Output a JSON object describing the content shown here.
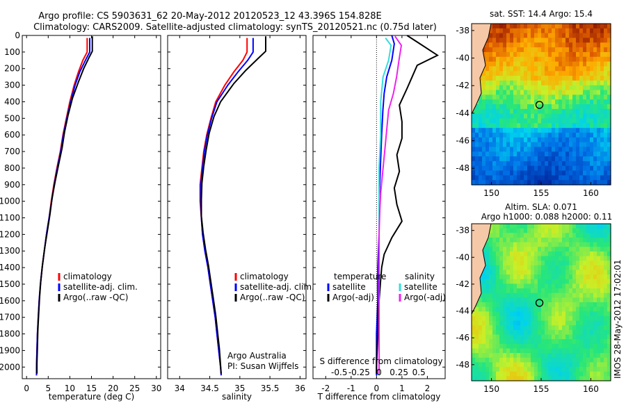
{
  "header": {
    "title_line1": "Argo profile: CS 5903631_62 20-May-2012 20120523_12 43.396S 154.828E",
    "title_line2": "Climatology: CARS2009. Satellite-adjusted climatology: synTS_20120521.nc (0.75d later)"
  },
  "colors": {
    "climatology": "#ff0000",
    "satellite": "#0000ff",
    "argo": "#000000",
    "salinity_satellite": "#33dddd",
    "salinity_argo": "#ee22ee"
  },
  "chart_data": [
    {
      "type": "line",
      "name": "temperature-profile",
      "xlabel": "temperature (deg C)",
      "xlim": [
        -1,
        31
      ],
      "ylim": [
        2070,
        0
      ],
      "xticks": [
        0,
        5,
        10,
        15,
        20,
        25,
        30
      ],
      "yticks": [
        0,
        100,
        200,
        300,
        400,
        500,
        600,
        700,
        800,
        900,
        1000,
        1100,
        1200,
        1300,
        1400,
        1500,
        1600,
        1700,
        1800,
        1900,
        2000
      ],
      "legend": {
        "position": "lower-center",
        "entries": [
          "climatology",
          "satellite-adj. clim.",
          "Argo(..raw -QC)"
        ]
      },
      "series": [
        {
          "name": "climatology",
          "points": [
            [
              14,
              15
            ],
            [
              14,
              100
            ],
            [
              13,
              150
            ],
            [
              12,
              220
            ],
            [
              11,
              300
            ],
            [
              10,
              400
            ],
            [
              9.2,
              500
            ],
            [
              8.4,
              600
            ],
            [
              7.8,
              700
            ],
            [
              7,
              800
            ],
            [
              6.3,
              900
            ],
            [
              5.7,
              1000
            ],
            [
              5.2,
              1100
            ],
            [
              4.6,
              1200
            ],
            [
              4.1,
              1300
            ],
            [
              3.6,
              1400
            ],
            [
              3.2,
              1500
            ],
            [
              2.9,
              1600
            ],
            [
              2.7,
              1700
            ],
            [
              2.5,
              1800
            ],
            [
              2.4,
              1900
            ],
            [
              2.3,
              2000
            ],
            [
              2.3,
              2050
            ]
          ]
        },
        {
          "name": "satellite-adj. clim.",
          "points": [
            [
              14.6,
              15
            ],
            [
              14.6,
              100
            ],
            [
              13.6,
              150
            ],
            [
              12.3,
              220
            ],
            [
              11.2,
              300
            ],
            [
              10.2,
              400
            ],
            [
              9.3,
              500
            ],
            [
              8.5,
              600
            ],
            [
              7.9,
              700
            ],
            [
              7.1,
              800
            ],
            [
              6.4,
              900
            ],
            [
              5.8,
              1000
            ],
            [
              5.2,
              1100
            ],
            [
              4.6,
              1200
            ],
            [
              4.1,
              1300
            ],
            [
              3.6,
              1400
            ],
            [
              3.2,
              1500
            ],
            [
              2.9,
              1600
            ],
            [
              2.7,
              1700
            ],
            [
              2.5,
              1800
            ],
            [
              2.4,
              1900
            ],
            [
              2.3,
              2000
            ],
            [
              2.3,
              2050
            ]
          ]
        },
        {
          "name": "Argo(..raw -QC)",
          "points": [
            [
              15.2,
              5
            ],
            [
              15.2,
              95
            ],
            [
              14.5,
              130
            ],
            [
              13.2,
              200
            ],
            [
              12,
              280
            ],
            [
              10.6,
              380
            ],
            [
              9.6,
              480
            ],
            [
              8.8,
              580
            ],
            [
              8.2,
              680
            ],
            [
              7.4,
              780
            ],
            [
              6.6,
              880
            ],
            [
              5.9,
              980
            ],
            [
              5.4,
              1080
            ],
            [
              4.8,
              1180
            ],
            [
              4.2,
              1280
            ],
            [
              3.7,
              1380
            ],
            [
              3.3,
              1480
            ],
            [
              3,
              1580
            ],
            [
              2.8,
              1680
            ],
            [
              2.6,
              1780
            ],
            [
              2.5,
              1880
            ],
            [
              2.4,
              1980
            ],
            [
              2.4,
              2040
            ]
          ]
        }
      ]
    },
    {
      "type": "line",
      "name": "salinity-profile",
      "xlabel": "salinity",
      "xlim": [
        33.8,
        36.1
      ],
      "ylim": [
        2070,
        0
      ],
      "xticks": [
        34,
        34.5,
        35,
        35.5,
        36
      ],
      "xticklabels": [
        "34",
        "34.5",
        "35",
        "35.5",
        "36"
      ],
      "legend": {
        "position": "lower-center",
        "entries": [
          "climatology",
          "satellite-adj. clim.",
          "Argo(..raw -QC)"
        ]
      },
      "annotation": [
        "Argo Australia",
        "PI: Susan Wijffels"
      ],
      "series": [
        {
          "name": "climatology",
          "points": [
            [
              35.12,
              15
            ],
            [
              35.12,
              100
            ],
            [
              35.05,
              150
            ],
            [
              34.9,
              220
            ],
            [
              34.75,
              300
            ],
            [
              34.6,
              400
            ],
            [
              34.52,
              500
            ],
            [
              34.45,
              600
            ],
            [
              34.4,
              700
            ],
            [
              34.37,
              800
            ],
            [
              34.34,
              900
            ],
            [
              34.34,
              1000
            ],
            [
              34.36,
              1100
            ],
            [
              34.38,
              1200
            ],
            [
              34.42,
              1300
            ],
            [
              34.47,
              1400
            ],
            [
              34.51,
              1500
            ],
            [
              34.55,
              1600
            ],
            [
              34.59,
              1700
            ],
            [
              34.62,
              1800
            ],
            [
              34.65,
              1900
            ],
            [
              34.68,
              2000
            ],
            [
              34.69,
              2050
            ]
          ]
        },
        {
          "name": "satellite-adj. clim.",
          "points": [
            [
              35.22,
              15
            ],
            [
              35.22,
              100
            ],
            [
              35.13,
              150
            ],
            [
              34.97,
              220
            ],
            [
              34.8,
              300
            ],
            [
              34.62,
              400
            ],
            [
              34.53,
              500
            ],
            [
              34.46,
              600
            ],
            [
              34.41,
              700
            ],
            [
              34.38,
              800
            ],
            [
              34.35,
              900
            ],
            [
              34.35,
              1000
            ],
            [
              34.36,
              1100
            ],
            [
              34.38,
              1200
            ],
            [
              34.42,
              1300
            ],
            [
              34.47,
              1400
            ],
            [
              34.51,
              1500
            ],
            [
              34.55,
              1600
            ],
            [
              34.59,
              1700
            ],
            [
              34.62,
              1800
            ],
            [
              34.65,
              1900
            ],
            [
              34.68,
              2000
            ],
            [
              34.69,
              2050
            ]
          ]
        },
        {
          "name": "Argo(..raw -QC)",
          "points": [
            [
              35.43,
              5
            ],
            [
              35.43,
              95
            ],
            [
              35.3,
              140
            ],
            [
              35.1,
              210
            ],
            [
              34.9,
              290
            ],
            [
              34.68,
              400
            ],
            [
              34.57,
              490
            ],
            [
              34.49,
              590
            ],
            [
              34.44,
              690
            ],
            [
              34.4,
              790
            ],
            [
              34.37,
              890
            ],
            [
              34.36,
              990
            ],
            [
              34.36,
              1090
            ],
            [
              34.39,
              1190
            ],
            [
              34.43,
              1290
            ],
            [
              34.48,
              1390
            ],
            [
              34.52,
              1490
            ],
            [
              34.56,
              1590
            ],
            [
              34.6,
              1690
            ],
            [
              34.63,
              1790
            ],
            [
              34.66,
              1890
            ],
            [
              34.68,
              1990
            ],
            [
              34.69,
              2040
            ]
          ]
        }
      ]
    },
    {
      "type": "line",
      "name": "difference-profile",
      "xlabel": "T difference from climatology",
      "xlabel_top": "S difference from climatology",
      "xlim": [
        -2.5,
        2.7
      ],
      "ylim": [
        2070,
        0
      ],
      "xticks": [
        -2,
        -1,
        0,
        1,
        2
      ],
      "xticklabels": [
        "-2",
        "-1",
        "0",
        "1",
        "2"
      ],
      "sticks": [
        -0.5,
        -0.25,
        0,
        0.25,
        0.5
      ],
      "sticklabels": [
        "-0.5",
        "-0.25",
        "0",
        "0.25",
        "0.5"
      ],
      "legend": {
        "position": "lower-center",
        "temperature_title": "temperature",
        "salinity_title": "salinity",
        "temperature_entries": [
          "satellite",
          "Argo(-adj)"
        ],
        "salinity_entries": [
          "satellite",
          "Argo(-adj)"
        ]
      },
      "series": [
        {
          "name": "T satellite",
          "points": [
            [
              0.6,
              0
            ],
            [
              0.7,
              50
            ],
            [
              0.6,
              150
            ],
            [
              0.4,
              250
            ],
            [
              0.3,
              350
            ],
            [
              0.25,
              450
            ],
            [
              0.2,
              600
            ],
            [
              0.15,
              800
            ],
            [
              0.1,
              1000
            ],
            [
              0.1,
              1200
            ],
            [
              0.05,
              1400
            ],
            [
              0.05,
              1600
            ],
            [
              0,
              1800
            ],
            [
              0,
              2050
            ]
          ]
        },
        {
          "name": "T Argo(-adj)",
          "points": [
            [
              1.2,
              0
            ],
            [
              1.7,
              50
            ],
            [
              2.4,
              120
            ],
            [
              1.6,
              180
            ],
            [
              1.4,
              250
            ],
            [
              1.2,
              320
            ],
            [
              0.9,
              420
            ],
            [
              1,
              520
            ],
            [
              1,
              620
            ],
            [
              0.8,
              720
            ],
            [
              0.9,
              820
            ],
            [
              0.7,
              920
            ],
            [
              0.8,
              1020
            ],
            [
              1,
              1120
            ],
            [
              0.6,
              1220
            ],
            [
              0.3,
              1320
            ],
            [
              0.2,
              1400
            ],
            [
              0.15,
              1500
            ],
            [
              0.1,
              1600
            ],
            [
              0.05,
              1700
            ],
            [
              0.05,
              1800
            ],
            [
              0,
              2000
            ],
            [
              0,
              2040
            ]
          ]
        },
        {
          "name": "S satellite",
          "points": [
            [
              0.08,
              15
            ],
            [
              0.15,
              60
            ],
            [
              0.12,
              150
            ],
            [
              0.05,
              250
            ],
            [
              0.02,
              400
            ],
            [
              0.02,
              600
            ],
            [
              0,
              800
            ],
            [
              0,
              1100
            ],
            [
              0,
              1300
            ],
            [
              0,
              1500
            ],
            [
              0,
              2050
            ]
          ]
        },
        {
          "name": "S Argo(-adj)",
          "points": [
            [
              0.2,
              5
            ],
            [
              0.28,
              60
            ],
            [
              0.25,
              150
            ],
            [
              0.22,
              250
            ],
            [
              0.18,
              350
            ],
            [
              0.12,
              450
            ],
            [
              0.1,
              550
            ],
            [
              0.08,
              650
            ],
            [
              0.06,
              750
            ],
            [
              0.04,
              850
            ],
            [
              0.02,
              950
            ],
            [
              0.01,
              1050
            ],
            [
              0,
              1200
            ],
            [
              0,
              1400
            ],
            [
              0,
              2040
            ]
          ]
        }
      ]
    },
    {
      "type": "heatmap",
      "name": "sst-map",
      "title": "sat. SST: 14.4 Argo: 15.4",
      "xlim": [
        148,
        162
      ],
      "ylim": [
        -49.2,
        -37.5
      ],
      "xticks": [
        150,
        155,
        160
      ],
      "yticks": [
        -38,
        -40,
        -42,
        -44,
        -46,
        -48
      ],
      "marker": {
        "x": 154.828,
        "y": -43.396
      }
    },
    {
      "type": "heatmap",
      "name": "sla-map",
      "title_line1": "Altim. SLA: 0.071",
      "title_line2": "Argo h1000: 0.088 h2000: 0.11",
      "xlim": [
        148,
        162
      ],
      "ylim": [
        -49.2,
        -37.5
      ],
      "xticks": [
        150,
        155,
        160
      ],
      "yticks": [
        -38,
        -40,
        -42,
        -44,
        -46,
        -48
      ],
      "marker": {
        "x": 154.828,
        "y": -43.396
      }
    }
  ],
  "footer": {
    "imos_stamp": "IMOS 28-May-2012 17:02:01"
  }
}
